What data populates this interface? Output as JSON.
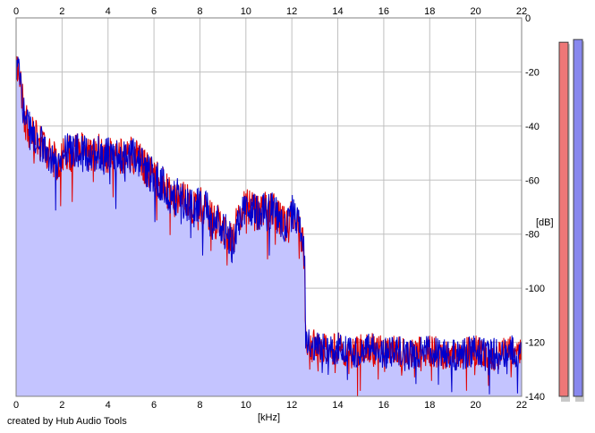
{
  "credit": "created by Hub Audio Tools",
  "chart_data": {
    "type": "area",
    "xlabel": "[kHz]",
    "ylabel": "[dB]",
    "xlim": [
      0,
      22
    ],
    "ylim": [
      -140,
      0
    ],
    "x_ticks": [
      0,
      2,
      4,
      6,
      8,
      10,
      12,
      14,
      16,
      18,
      20,
      22
    ],
    "y_ticks": [
      0,
      -20,
      -40,
      -60,
      -80,
      -100,
      -120,
      -140
    ],
    "grid": true,
    "colors": {
      "fill": "#c4c4ff",
      "channel_left": "#e00000",
      "channel_right": "#0000cc",
      "grid": "#c0c0c0",
      "meter_left": "#ee7777",
      "meter_right": "#8888ee"
    },
    "series": [
      {
        "x": [
          0,
          0.1,
          0.2,
          0.3,
          0.4,
          0.6,
          0.8,
          1.0,
          1.2,
          1.4,
          1.6,
          1.8,
          2.0,
          2.2,
          2.4,
          2.6,
          2.8,
          3.0,
          3.2,
          3.4,
          3.6,
          3.8,
          4.0,
          4.2,
          4.4,
          4.6,
          4.8,
          5.0,
          5.2,
          5.4,
          5.6,
          5.8,
          6.0,
          6.2,
          6.4,
          6.6,
          6.8,
          7.0,
          7.2,
          7.4,
          7.6,
          7.8,
          8.0,
          8.2,
          8.4,
          8.6,
          8.8,
          9.0,
          9.2,
          9.4,
          9.6,
          9.8,
          10.0,
          10.2,
          10.4,
          10.6,
          10.8,
          11.0,
          11.2,
          11.4,
          11.6,
          11.8,
          12.0,
          12.2,
          12.4,
          12.55,
          12.6,
          12.8,
          13.0,
          13.5,
          14,
          14.5,
          15,
          15.5,
          16,
          16.5,
          17,
          17.5,
          18,
          18.5,
          19,
          19.5,
          20,
          20.5,
          21,
          21.5,
          22
        ],
        "values": [
          -18,
          -20,
          -25,
          -32,
          -38,
          -42,
          -44,
          -46,
          -48,
          -50,
          -52,
          -54,
          -50,
          -49,
          -50,
          -48,
          -49,
          -50,
          -51,
          -50,
          -49,
          -50,
          -51,
          -50,
          -52,
          -51,
          -52,
          -50,
          -51,
          -53,
          -55,
          -57,
          -58,
          -60,
          -62,
          -65,
          -68,
          -66,
          -67,
          -68,
          -69,
          -70,
          -69,
          -70,
          -72,
          -74,
          -76,
          -78,
          -80,
          -84,
          -76,
          -72,
          -70,
          -71,
          -72,
          -73,
          -70,
          -72,
          -71,
          -74,
          -76,
          -78,
          -72,
          -74,
          -80,
          -88,
          -118,
          -122,
          -121,
          -123,
          -122,
          -124,
          -123,
          -122,
          -124,
          -123,
          -125,
          -124,
          -123,
          -124,
          -125,
          -124,
          -123,
          -125,
          -124,
          -123,
          -125
        ]
      }
    ],
    "meters": [
      -9,
      -8
    ]
  }
}
